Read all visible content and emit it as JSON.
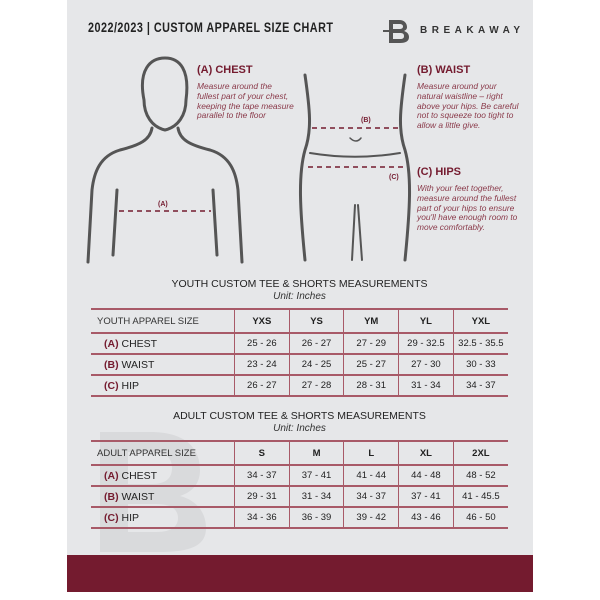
{
  "header": {
    "title": "2022/2023  |  CUSTOM APPAREL SIZE CHART",
    "brand": "BREAKAWAY",
    "logo_letter": "B"
  },
  "guide": {
    "chest": {
      "heading": "(A) CHEST",
      "marker": "(A)",
      "text": "Measure around the fullest part of your chest, keeping the tape measure parallel to the floor"
    },
    "waist": {
      "heading": "(B) WAIST",
      "marker": "(B)",
      "text": "Measure around your natural waistline – right above your hips. Be careful not to squeeze too tight to allow a little give."
    },
    "hips": {
      "heading": "(C) HIPS",
      "marker": "(C)",
      "text": "With your feet together, measure around the fullest part of your hips to ensure you'll have enough room to move comfortably."
    }
  },
  "youth": {
    "title": "YOUTH CUSTOM TEE & SHORTS MEASUREMENTS",
    "unit": "Unit: Inches",
    "header": [
      "YOUTH APPAREL SIZE",
      "YXS",
      "YS",
      "YM",
      "YL",
      "YXL"
    ],
    "rows": [
      {
        "letter": "(A)",
        "label": "CHEST",
        "values": [
          "25 - 26",
          "26 - 27",
          "27 - 29",
          "29 - 32.5",
          "32.5 - 35.5"
        ]
      },
      {
        "letter": "(B)",
        "label": "WAIST",
        "values": [
          "23 - 24",
          "24 - 25",
          "25 - 27",
          "27 - 30",
          "30 - 33"
        ]
      },
      {
        "letter": "(C)",
        "label": "HIP",
        "values": [
          "26 - 27",
          "27 - 28",
          "28 - 31",
          "31 - 34",
          "34 - 37"
        ]
      }
    ]
  },
  "adult": {
    "title": "ADULT CUSTOM TEE & SHORTS MEASUREMENTS",
    "unit": "Unit: Inches",
    "header": [
      "ADULT APPAREL SIZE",
      "S",
      "M",
      "L",
      "XL",
      "2XL"
    ],
    "rows": [
      {
        "letter": "(A)",
        "label": "CHEST",
        "values": [
          "34 - 37",
          "37 - 41",
          "41 - 44",
          "44 - 48",
          "48 - 52"
        ]
      },
      {
        "letter": "(B)",
        "label": "WAIST",
        "values": [
          "29 - 31",
          "31 - 34",
          "34 - 37",
          "37 - 41",
          "41 - 45.5"
        ]
      },
      {
        "letter": "(C)",
        "label": "HIP",
        "values": [
          "34 - 36",
          "36 - 39",
          "39 - 42",
          "43 - 46",
          "46 - 50"
        ]
      }
    ]
  },
  "colors": {
    "accent": "#741b2f",
    "background": "#e6e7e9"
  }
}
